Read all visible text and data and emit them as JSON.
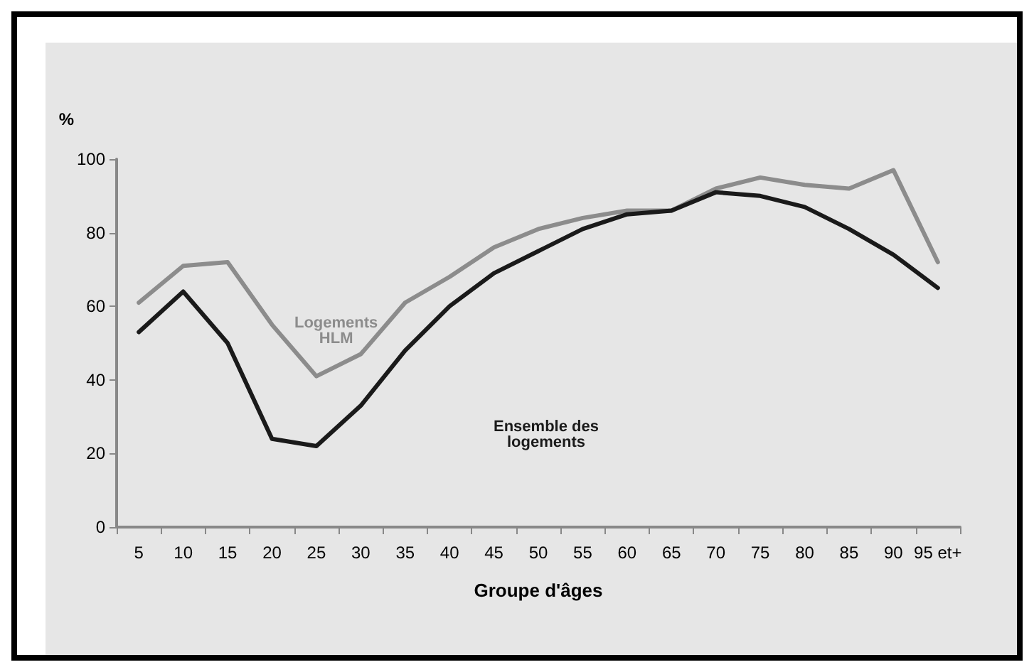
{
  "chart_data": {
    "type": "line",
    "xlabel": "Groupe d'âges",
    "ylabel": "%",
    "categories": [
      "5",
      "10",
      "15",
      "20",
      "25",
      "30",
      "35",
      "40",
      "45",
      "50",
      "55",
      "60",
      "65",
      "70",
      "75",
      "80",
      "85",
      "90",
      "95 et+"
    ],
    "series": [
      {
        "name": "Logements HLM",
        "color": "#8c8c8c",
        "values": [
          61,
          71,
          72,
          55,
          41,
          47,
          61,
          68,
          76,
          81,
          84,
          86,
          86,
          92,
          95,
          93,
          92,
          97,
          72
        ]
      },
      {
        "name": "Ensemble des logements",
        "color": "#1a1a1a",
        "values": [
          53,
          64,
          50,
          24,
          22,
          33,
          48,
          60,
          69,
          75,
          81,
          85,
          86,
          91,
          90,
          87,
          81,
          74,
          65
        ]
      }
    ],
    "ylim": [
      0,
      100
    ],
    "yticks": [
      0,
      20,
      40,
      60,
      80,
      100
    ],
    "grid": false,
    "legend": false,
    "marker": "none",
    "line_style": "solid"
  }
}
